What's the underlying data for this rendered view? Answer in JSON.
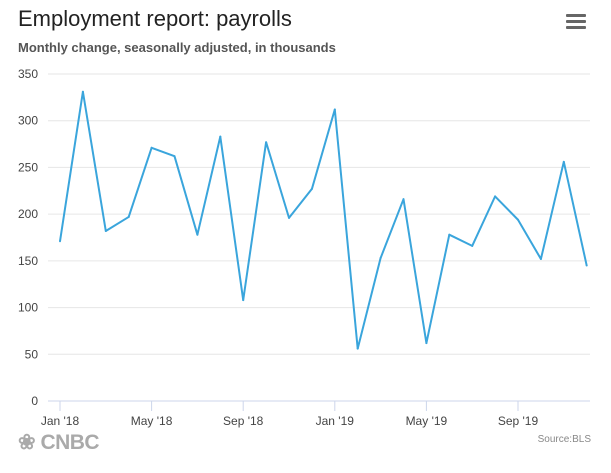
{
  "header": {
    "title": "Employment report: payrolls",
    "subtitle": "Monthly change, seasonally adjusted, in thousands"
  },
  "footer": {
    "logo": "CNBC",
    "source": "Source:BLS"
  },
  "colors": {
    "line": "#3aa5dc",
    "grid": "#e6e6e6",
    "axis": "#ccd6eb"
  },
  "chart_data": {
    "type": "line",
    "title": "Employment report: payrolls",
    "subtitle": "Monthly change, seasonally adjusted, in thousands",
    "x": [
      "Jan '18",
      "Feb '18",
      "Mar '18",
      "Apr '18",
      "May '18",
      "Jun '18",
      "Jul '18",
      "Aug '18",
      "Sep '18",
      "Oct '18",
      "Nov '18",
      "Dec '18",
      "Jan '19",
      "Feb '19",
      "Mar '19",
      "Apr '19",
      "May '19",
      "Jun '19",
      "Jul '19",
      "Aug '19",
      "Sep '19",
      "Oct '19",
      "Nov '19",
      "Dec '19"
    ],
    "series": [
      {
        "name": "Payrolls",
        "values": [
          171,
          331,
          182,
          197,
          271,
          262,
          178,
          283,
          108,
          277,
          196,
          227,
          312,
          56,
          153,
          216,
          62,
          178,
          166,
          219,
          194,
          152,
          256,
          145
        ]
      }
    ],
    "xticks": [
      {
        "index": 0,
        "label": "Jan '18"
      },
      {
        "index": 4,
        "label": "May '18"
      },
      {
        "index": 8,
        "label": "Sep '18"
      },
      {
        "index": 12,
        "label": "Jan '19"
      },
      {
        "index": 16,
        "label": "May '19"
      },
      {
        "index": 20,
        "label": "Sep '19"
      }
    ],
    "yticks": [
      0,
      50,
      100,
      150,
      200,
      250,
      300,
      350
    ],
    "ylim": [
      0,
      350
    ],
    "grid": true
  }
}
